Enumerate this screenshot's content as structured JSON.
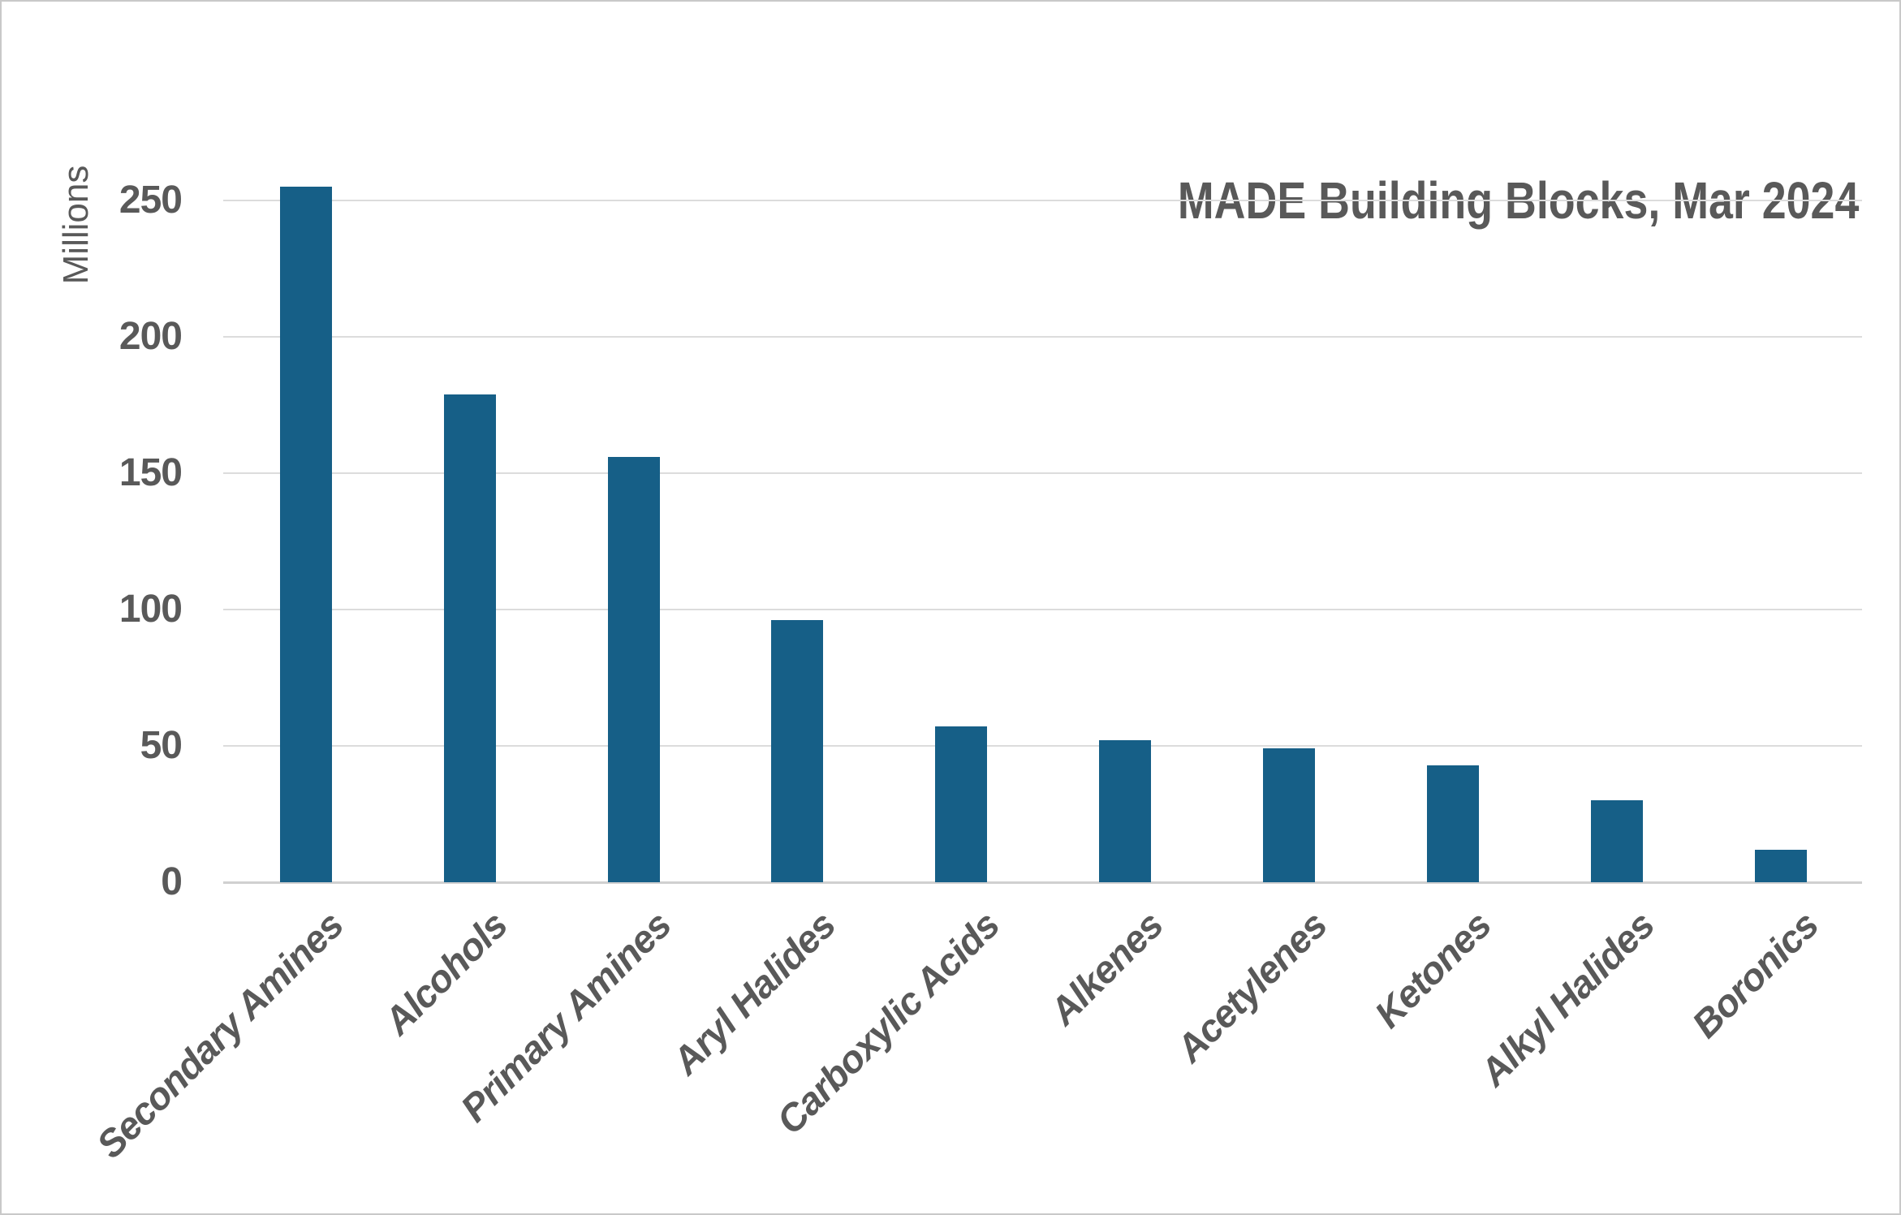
{
  "chart_data": {
    "type": "bar",
    "title": "MADE Building Blocks, Mar 2024",
    "xlabel": "",
    "ylabel": "Millions",
    "categories": [
      "Secondary Amines",
      "Alcohols",
      "Primary Amines",
      "Aryl Halides",
      "Carboxylic Acids",
      "Alkenes",
      "Acetylenes",
      "Ketones",
      "Alkyl Halides",
      "Boronics"
    ],
    "values": [
      255,
      179,
      156,
      96,
      57,
      52,
      49,
      43,
      30,
      12
    ],
    "yticks": [
      0,
      50,
      100,
      150,
      200,
      250
    ],
    "ylim": [
      0,
      260
    ],
    "grid": "horizontal-on",
    "legend": "none",
    "bar_color": "#165F87",
    "gridline_color": "#DCDCDC",
    "zero_line_color": "#D0D0D0",
    "text_color": "#595959",
    "frame_border_color": "#C9C9C9"
  }
}
